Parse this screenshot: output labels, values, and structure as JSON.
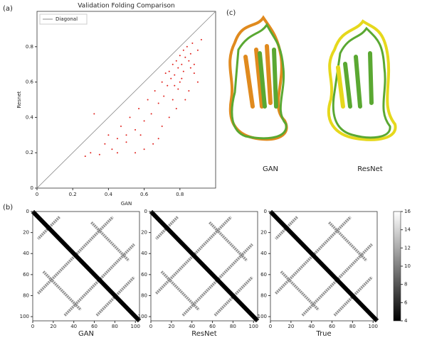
{
  "panels": [
    "(a)",
    "(b)",
    "(c)"
  ],
  "structures": {
    "labels": [
      "GAN",
      "ResNet"
    ]
  },
  "chart_data": [
    {
      "type": "scatter",
      "title": "Validation Folding Comparison",
      "x_label": "GAN",
      "y_label": "Resnet",
      "xlim": [
        0,
        1.0
      ],
      "ylim": [
        0,
        1.0
      ],
      "xticks": [
        0.0,
        0.2,
        0.4,
        0.6,
        0.8
      ],
      "yticks": [
        0.0,
        0.2,
        0.4,
        0.6,
        0.8
      ],
      "legend": "upper left",
      "diagonal": {
        "name": "Diagonal",
        "color": "#888888"
      },
      "points": {
        "color": "#e0201b",
        "x": [
          0.27,
          0.3,
          0.32,
          0.35,
          0.38,
          0.4,
          0.42,
          0.45,
          0.47,
          0.5,
          0.52,
          0.55,
          0.57,
          0.6,
          0.62,
          0.64,
          0.66,
          0.68,
          0.7,
          0.71,
          0.72,
          0.73,
          0.74,
          0.75,
          0.76,
          0.77,
          0.78,
          0.79,
          0.8,
          0.8,
          0.81,
          0.82,
          0.82,
          0.83,
          0.84,
          0.85,
          0.86,
          0.87,
          0.88,
          0.9,
          0.92,
          0.78,
          0.76,
          0.74,
          0.7,
          0.68,
          0.65,
          0.6,
          0.58,
          0.55,
          0.5,
          0.45,
          0.85,
          0.83,
          0.81,
          0.79,
          0.77,
          0.88,
          0.9,
          0.86
        ],
        "y": [
          0.18,
          0.2,
          0.42,
          0.19,
          0.25,
          0.3,
          0.22,
          0.28,
          0.35,
          0.3,
          0.4,
          0.33,
          0.45,
          0.38,
          0.5,
          0.42,
          0.55,
          0.48,
          0.6,
          0.52,
          0.65,
          0.58,
          0.66,
          0.62,
          0.7,
          0.64,
          0.72,
          0.68,
          0.75,
          0.6,
          0.7,
          0.78,
          0.66,
          0.74,
          0.8,
          0.72,
          0.76,
          0.82,
          0.7,
          0.78,
          0.84,
          0.45,
          0.5,
          0.4,
          0.35,
          0.28,
          0.25,
          0.22,
          0.3,
          0.2,
          0.26,
          0.2,
          0.55,
          0.5,
          0.62,
          0.56,
          0.58,
          0.65,
          0.6,
          0.68
        ]
      }
    },
    {
      "type": "heatmap",
      "x_label": "GAN",
      "xlim": [
        0,
        104
      ],
      "ylim": [
        0,
        104
      ],
      "xticks": [
        0,
        20,
        40,
        60,
        80,
        100
      ],
      "yticks": [
        0,
        20,
        40,
        60,
        80,
        100
      ]
    },
    {
      "type": "heatmap",
      "x_label": "ResNet",
      "xlim": [
        0,
        104
      ],
      "ylim": [
        0,
        104
      ],
      "xticks": [
        0,
        20,
        40,
        60,
        80,
        100
      ],
      "yticks": [
        0,
        20,
        40,
        60,
        80,
        100
      ]
    },
    {
      "type": "heatmap",
      "x_label": "True",
      "xlim": [
        0,
        104
      ],
      "ylim": [
        0,
        104
      ],
      "xticks": [
        0,
        20,
        40,
        60,
        80,
        100
      ],
      "yticks": [
        0,
        20,
        40,
        60,
        80,
        100
      ],
      "colorbar": {
        "lim": [
          4,
          16
        ],
        "ticks": [
          4,
          6,
          8,
          10,
          12,
          14,
          16
        ]
      }
    }
  ]
}
